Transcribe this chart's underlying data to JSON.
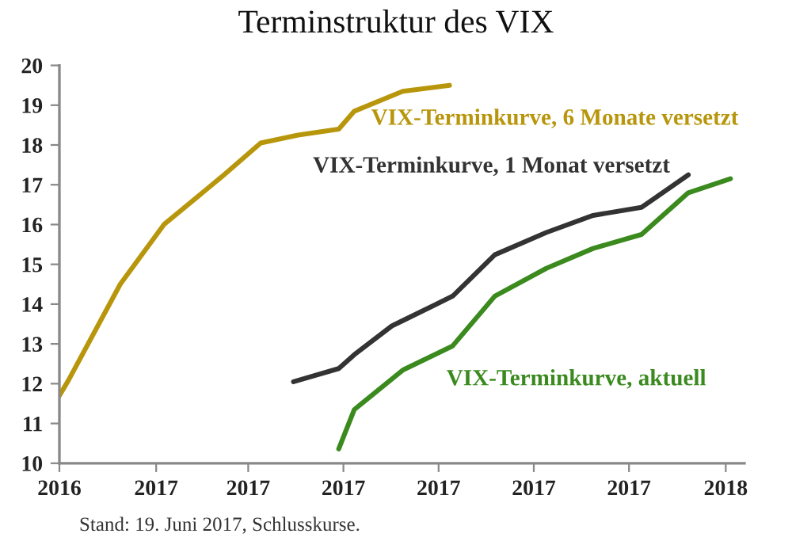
{
  "chart_data": {
    "type": "line",
    "title": "Terminstruktur des VIX",
    "xlim": [
      "2016-12-01",
      "2018-02-13"
    ],
    "xticks": [
      {
        "value": "2016-12-01",
        "label": "2016"
      },
      {
        "value": "2017-02-01",
        "label": "2017"
      },
      {
        "value": "2017-04-01",
        "label": "2017"
      },
      {
        "value": "2017-06-01",
        "label": "2017"
      },
      {
        "value": "2017-08-01",
        "label": "2017"
      },
      {
        "value": "2017-10-01",
        "label": "2017"
      },
      {
        "value": "2017-12-01",
        "label": "2017"
      },
      {
        "value": "2018-02-01",
        "label": "2018"
      }
    ],
    "ylim": [
      10,
      20
    ],
    "yticks": [
      10,
      11,
      12,
      13,
      14,
      15,
      16,
      17,
      18,
      19,
      20
    ],
    "grid": false,
    "legend": false,
    "marker": "none",
    "line_style": "solid",
    "series": [
      {
        "name": "VIX-Terminkurve, 6 Monate versetzt",
        "color": "#b8960c",
        "x": [
          "2016-12-01",
          "2016-12-07",
          "2017-01-09",
          "2017-02-06",
          "2017-03-15",
          "2017-04-09",
          "2017-05-03",
          "2017-05-29",
          "2017-06-08",
          "2017-07-09",
          "2017-08-08"
        ],
        "values": [
          11.7,
          12.1,
          14.5,
          16.0,
          17.2,
          18.05,
          18.25,
          18.4,
          18.85,
          19.35,
          19.5
        ]
      },
      {
        "name": "VIX-Terminkurve, 1 Monat versetzt",
        "color": "#333333",
        "x": [
          "2017-04-30",
          "2017-05-29",
          "2017-06-08",
          "2017-07-02",
          "2017-07-29",
          "2017-08-10",
          "2017-09-06",
          "2017-10-09",
          "2017-11-08",
          "2017-12-09",
          "2018-01-08"
        ],
        "values": [
          12.05,
          12.38,
          12.73,
          13.45,
          13.97,
          14.2,
          15.24,
          15.8,
          16.23,
          16.43,
          17.25
        ]
      },
      {
        "name": "VIX-Terminkurve, aktuell",
        "color": "#3a8a1e",
        "x": [
          "2017-05-29",
          "2017-06-08",
          "2017-07-09",
          "2017-08-10",
          "2017-09-06",
          "2017-10-09",
          "2017-11-08",
          "2017-12-09",
          "2018-01-08",
          "2018-02-04"
        ],
        "values": [
          10.36,
          11.35,
          12.34,
          12.95,
          14.2,
          14.9,
          15.4,
          15.75,
          16.8,
          17.15
        ]
      }
    ],
    "annotations": [
      "Stand: 19. Juni 2017, Schlusskurse."
    ]
  }
}
